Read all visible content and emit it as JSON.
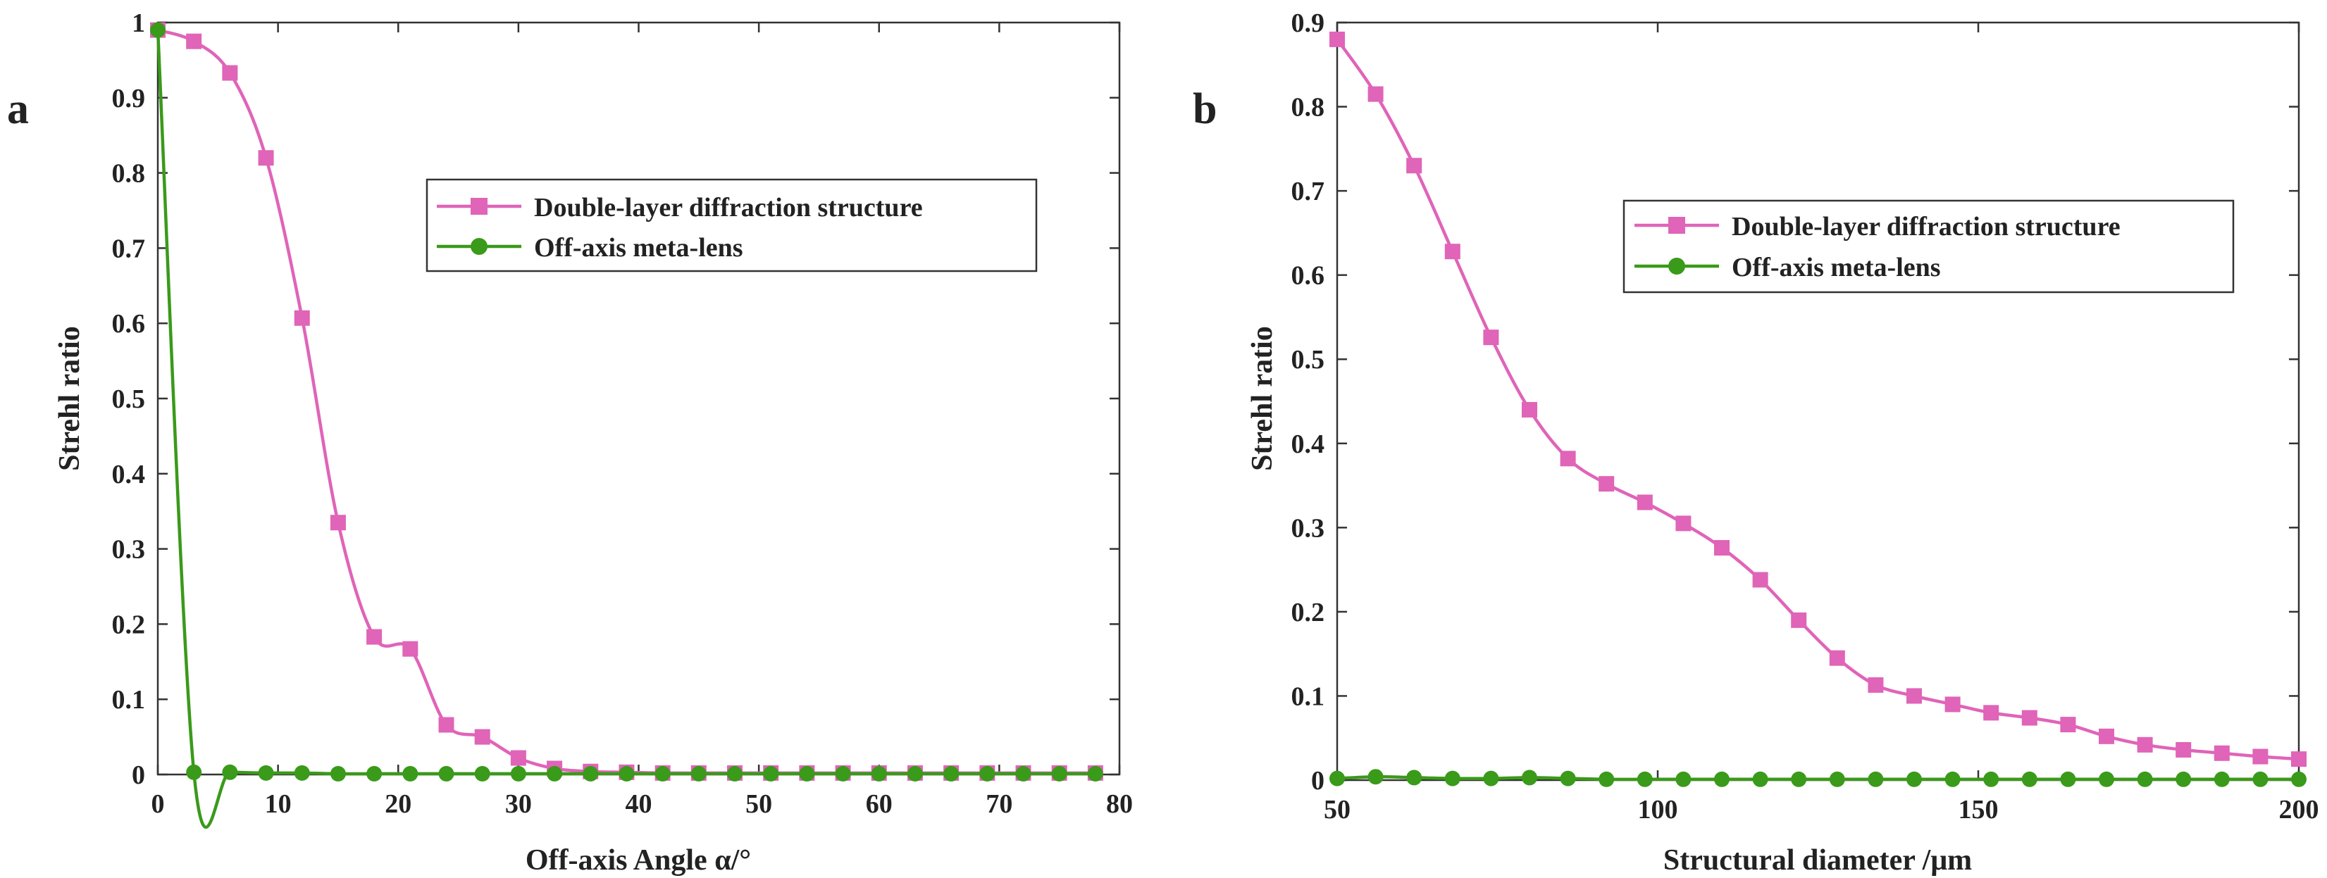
{
  "colors": {
    "double_layer": "#e064b8",
    "off_axis": "#3a9a1a",
    "axis": "#333333",
    "text": "#222222"
  },
  "chart_data": [
    {
      "type": "line",
      "panel_label": "a",
      "xlabel": "Off-axis Angle α/°",
      "ylabel": "Strehl ratio",
      "xlim": [
        0,
        80
      ],
      "ylim": [
        0,
        1
      ],
      "xticks": [
        0,
        10,
        20,
        30,
        40,
        50,
        60,
        70,
        80
      ],
      "yticks": [
        0,
        0.1,
        0.2,
        0.3,
        0.4,
        0.5,
        0.6,
        0.7,
        0.8,
        0.9,
        1
      ],
      "legend_position": "upper-right",
      "series": [
        {
          "name": "Double-layer diffraction structure",
          "marker": "square",
          "color": "#e064b8",
          "x": [
            0,
            3,
            6,
            9,
            12,
            15,
            18,
            21,
            24,
            27,
            30,
            33,
            36,
            39,
            42,
            45,
            48,
            51,
            54,
            57,
            60,
            63,
            66,
            69,
            72,
            75,
            78
          ],
          "y": [
            0.99,
            0.975,
            0.933,
            0.82,
            0.607,
            0.335,
            0.183,
            0.167,
            0.066,
            0.05,
            0.022,
            0.008,
            0.004,
            0.003,
            0.002,
            0.002,
            0.002,
            0.002,
            0.002,
            0.002,
            0.002,
            0.002,
            0.002,
            0.002,
            0.002,
            0.002,
            0.002
          ]
        },
        {
          "name": "Off-axis meta-lens",
          "marker": "circle",
          "color": "#3a9a1a",
          "x": [
            0,
            3,
            6,
            9,
            12,
            15,
            18,
            21,
            24,
            27,
            30,
            33,
            36,
            39,
            42,
            45,
            48,
            51,
            54,
            57,
            60,
            63,
            66,
            69,
            72,
            75,
            78
          ],
          "y": [
            0.99,
            0.003,
            0.003,
            0.002,
            0.002,
            0.001,
            0.001,
            0.001,
            0.001,
            0.001,
            0.001,
            0.001,
            0.001,
            0.001,
            0.001,
            0.001,
            0.001,
            0.001,
            0.001,
            0.001,
            0.001,
            0.001,
            0.001,
            0.001,
            0.001,
            0.001,
            0.001
          ]
        }
      ]
    },
    {
      "type": "line",
      "panel_label": "b",
      "xlabel": "Structural diameter /μm",
      "ylabel": "Strehl ratio",
      "xlim": [
        50,
        200
      ],
      "ylim": [
        0,
        0.9
      ],
      "xticks": [
        50,
        100,
        150,
        200
      ],
      "yticks": [
        0,
        0.1,
        0.2,
        0.3,
        0.4,
        0.5,
        0.6,
        0.7,
        0.8,
        0.9
      ],
      "legend_position": "upper-right",
      "series": [
        {
          "name": "Double-layer diffraction structure",
          "marker": "square",
          "color": "#e064b8",
          "x": [
            50,
            56,
            62,
            68,
            74,
            80,
            86,
            92,
            98,
            104,
            110,
            116,
            122,
            128,
            134,
            140,
            146,
            152,
            158,
            164,
            170,
            176,
            182,
            188,
            194,
            200
          ],
          "y": [
            0.88,
            0.815,
            0.73,
            0.628,
            0.526,
            0.44,
            0.382,
            0.352,
            0.33,
            0.305,
            0.276,
            0.238,
            0.19,
            0.145,
            0.113,
            0.1,
            0.09,
            0.08,
            0.074,
            0.066,
            0.052,
            0.042,
            0.036,
            0.032,
            0.028,
            0.025
          ]
        },
        {
          "name": "Off-axis meta-lens",
          "marker": "circle",
          "color": "#3a9a1a",
          "x": [
            50,
            56,
            62,
            68,
            74,
            80,
            86,
            92,
            98,
            104,
            110,
            116,
            122,
            128,
            134,
            140,
            146,
            152,
            158,
            164,
            170,
            176,
            182,
            188,
            194,
            200
          ],
          "y": [
            0.002,
            0.004,
            0.003,
            0.002,
            0.002,
            0.003,
            0.002,
            0.001,
            0.001,
            0.001,
            0.001,
            0.001,
            0.001,
            0.001,
            0.001,
            0.001,
            0.001,
            0.001,
            0.001,
            0.001,
            0.001,
            0.001,
            0.001,
            0.001,
            0.001,
            0.001
          ]
        }
      ]
    }
  ]
}
